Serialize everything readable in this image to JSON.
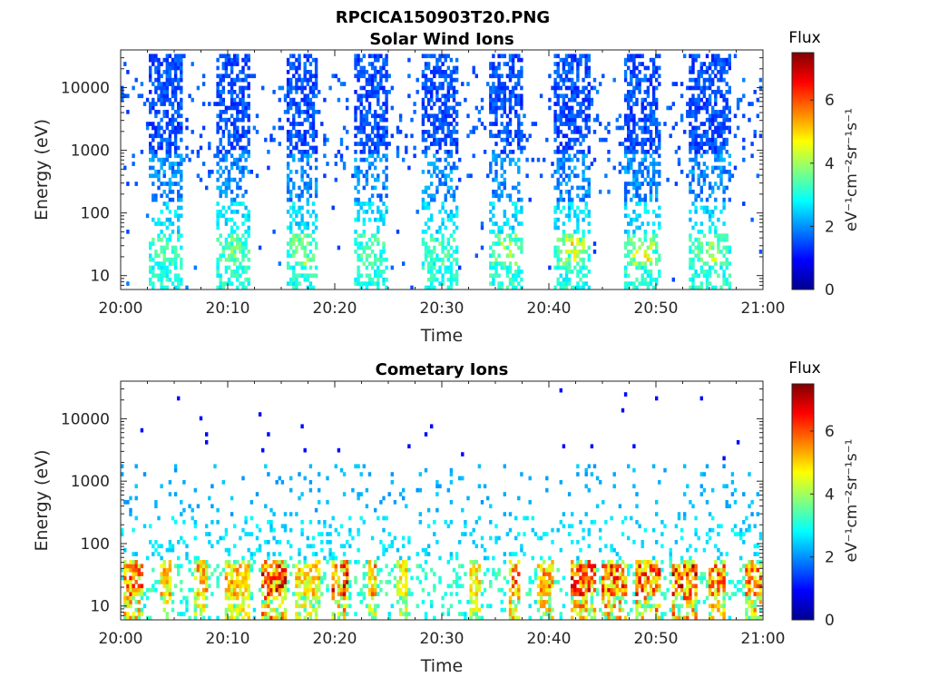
{
  "figure": {
    "title": "RPCICA150903T20.PNG",
    "colors": {
      "axis": "#262626",
      "background": "#ffffff"
    }
  },
  "colormap": {
    "name": "jet",
    "stops": [
      "#00008f",
      "#0000ff",
      "#0080ff",
      "#00ffff",
      "#80ff80",
      "#ffff00",
      "#ff8000",
      "#ff0000",
      "#800000"
    ]
  },
  "chart_data": [
    {
      "type": "heatmap",
      "title": "Solar Wind Ions",
      "xlabel": "Time",
      "ylabel": "Energy (eV)",
      "x_ticks": [
        "20:00",
        "20:10",
        "20:20",
        "20:30",
        "20:40",
        "20:50",
        "21:00"
      ],
      "x_range_minutes": [
        0,
        60
      ],
      "y_scale": "log",
      "y_ticks": [
        "10",
        "100",
        "1000",
        "10000"
      ],
      "y_range": [
        6,
        40000
      ],
      "grid": false,
      "colorbar": {
        "label": "Flux",
        "units": "eV⁻¹cm⁻²sr⁻¹s⁻¹",
        "range": [
          0,
          7.5
        ],
        "ticks": [
          "0",
          "2",
          "4",
          "6"
        ]
      },
      "bursts": [
        {
          "start": 2.5,
          "end": 5.8,
          "peak_flux": 3.6
        },
        {
          "start": 9.0,
          "end": 12.2,
          "peak_flux": 4.2
        },
        {
          "start": 15.5,
          "end": 18.5,
          "peak_flux": 4.6
        },
        {
          "start": 21.8,
          "end": 25.0,
          "peak_flux": 3.9
        },
        {
          "start": 28.0,
          "end": 31.5,
          "peak_flux": 3.7
        },
        {
          "start": 34.5,
          "end": 37.5,
          "peak_flux": 4.8
        },
        {
          "start": 40.5,
          "end": 44.0,
          "peak_flux": 5.6
        },
        {
          "start": 47.0,
          "end": 50.5,
          "peak_flux": 5.8
        },
        {
          "start": 53.0,
          "end": 57.0,
          "peak_flux": 4.8
        }
      ]
    },
    {
      "type": "heatmap",
      "title": "Cometary Ions",
      "xlabel": "Time",
      "ylabel": "Energy (eV)",
      "x_ticks": [
        "20:00",
        "20:10",
        "20:20",
        "20:30",
        "20:40",
        "20:50",
        "21:00"
      ],
      "x_range_minutes": [
        0,
        60
      ],
      "y_scale": "log",
      "y_ticks": [
        "10",
        "100",
        "1000",
        "10000"
      ],
      "y_range": [
        6,
        40000
      ],
      "grid": false,
      "colorbar": {
        "label": "Flux",
        "units": "eV⁻¹cm⁻²sr⁻¹s⁻¹",
        "range": [
          0,
          7.5
        ],
        "ticks": [
          "0",
          "2",
          "4",
          "6"
        ]
      },
      "bursts": [
        {
          "start": 0.2,
          "end": 2.2,
          "peak_flux": 6.6
        },
        {
          "start": 3.8,
          "end": 4.6,
          "peak_flux": 5.8
        },
        {
          "start": 6.8,
          "end": 8.2,
          "peak_flux": 6.0
        },
        {
          "start": 9.8,
          "end": 12.0,
          "peak_flux": 5.8
        },
        {
          "start": 13.2,
          "end": 15.6,
          "peak_flux": 7.3
        },
        {
          "start": 16.2,
          "end": 18.6,
          "peak_flux": 5.6
        },
        {
          "start": 19.6,
          "end": 21.2,
          "peak_flux": 7.2
        },
        {
          "start": 23.0,
          "end": 24.0,
          "peak_flux": 6.2
        },
        {
          "start": 25.8,
          "end": 26.8,
          "peak_flux": 5.4
        },
        {
          "start": 32.6,
          "end": 33.6,
          "peak_flux": 5.4
        },
        {
          "start": 36.2,
          "end": 37.4,
          "peak_flux": 6.4
        },
        {
          "start": 39.0,
          "end": 40.4,
          "peak_flux": 6.2
        },
        {
          "start": 42.0,
          "end": 44.4,
          "peak_flux": 7.2
        },
        {
          "start": 45.0,
          "end": 47.2,
          "peak_flux": 7.0
        },
        {
          "start": 48.0,
          "end": 50.4,
          "peak_flux": 7.0
        },
        {
          "start": 51.6,
          "end": 53.8,
          "peak_flux": 7.4
        },
        {
          "start": 54.8,
          "end": 56.6,
          "peak_flux": 6.6
        },
        {
          "start": 58.4,
          "end": 59.8,
          "peak_flux": 6.4
        }
      ]
    }
  ]
}
